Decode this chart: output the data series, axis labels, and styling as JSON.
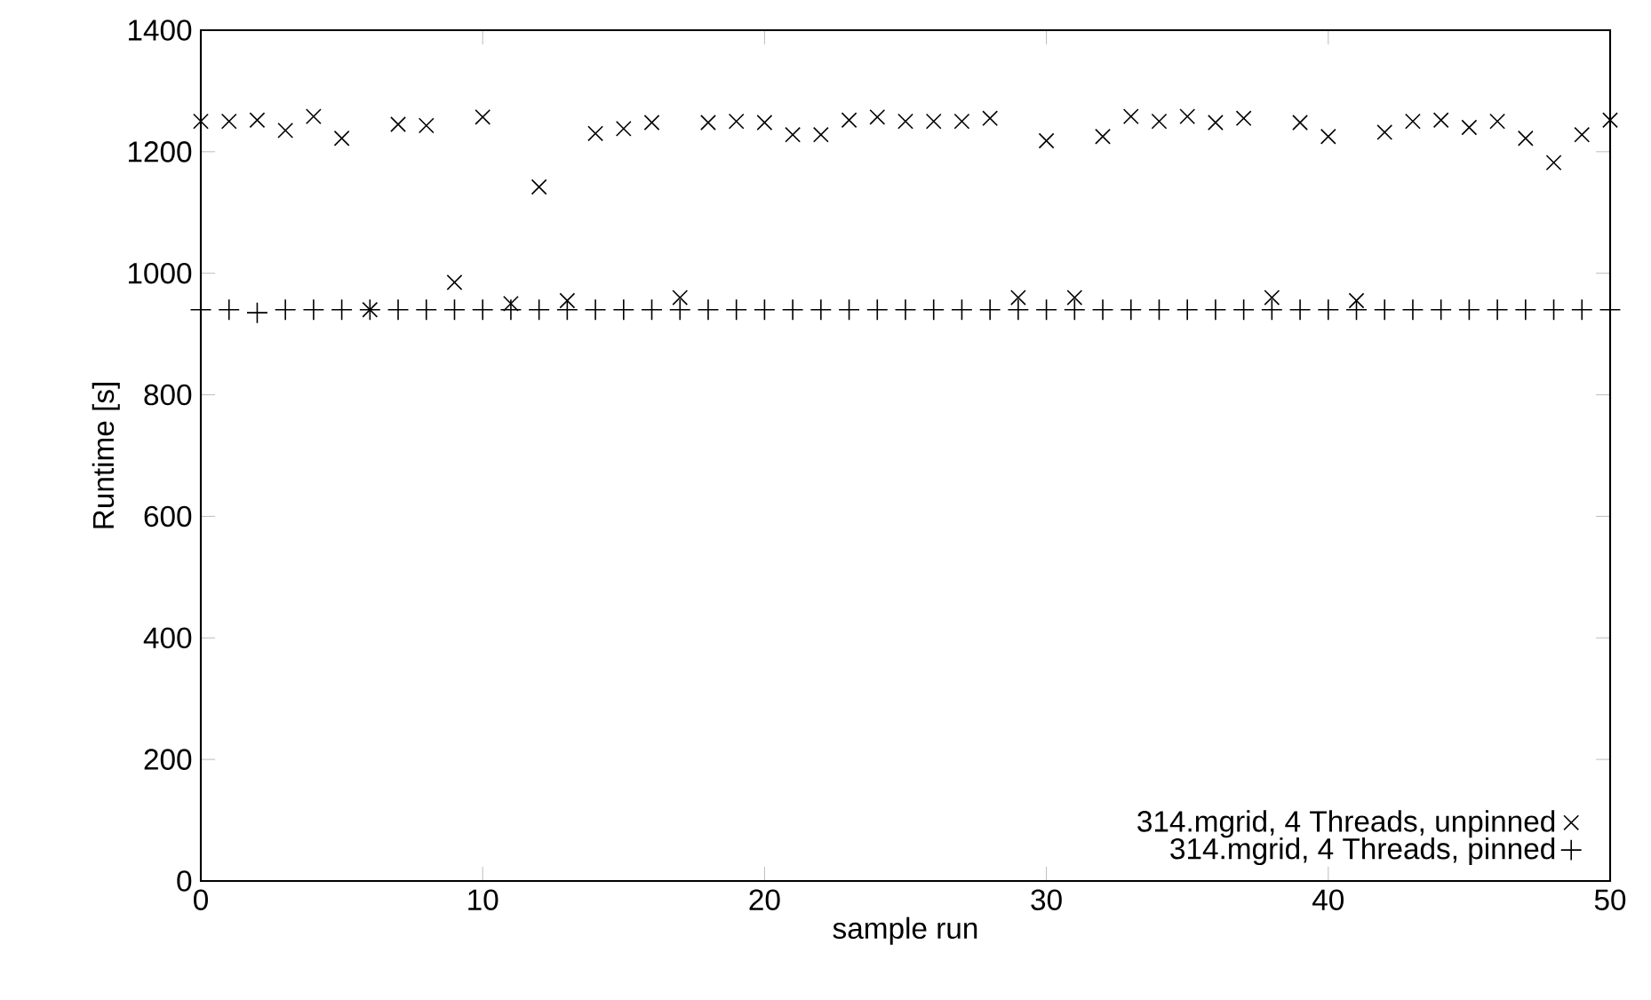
{
  "chart_data": {
    "type": "scatter",
    "xlabel": "sample run",
    "ylabel": "Runtime [s]",
    "x": [
      0,
      1,
      2,
      3,
      4,
      5,
      6,
      7,
      8,
      9,
      10,
      11,
      12,
      13,
      14,
      15,
      16,
      17,
      18,
      19,
      20,
      21,
      22,
      23,
      24,
      25,
      26,
      27,
      28,
      29,
      30,
      31,
      32,
      33,
      34,
      35,
      36,
      37,
      38,
      39,
      40,
      41,
      42,
      43,
      44,
      45,
      46,
      47,
      48,
      49,
      50
    ],
    "series": [
      {
        "name": "314.mgrid, 4 Threads, unpinned",
        "color": "#000000",
        "marker": "cross",
        "values": [
          1250,
          1250,
          1252,
          1235,
          1258,
          1222,
          940,
          1245,
          1243,
          985,
          1257,
          950,
          1142,
          955,
          1230,
          1238,
          1248,
          960,
          1248,
          1250,
          1248,
          1228,
          1228,
          1252,
          1257,
          1250,
          1250,
          1250,
          1255,
          960,
          1218,
          960,
          1225,
          1258,
          1250,
          1258,
          1248,
          1255,
          960,
          1248,
          1225,
          955,
          1232,
          1250,
          1252,
          1240,
          1250,
          1222,
          1182,
          1228,
          1252
        ]
      },
      {
        "name": "314.mgrid, 4 Threads, pinned",
        "color": "#000000",
        "marker": "plus",
        "values": [
          940,
          940,
          935,
          940,
          940,
          940,
          940,
          940,
          940,
          940,
          940,
          940,
          940,
          940,
          940,
          940,
          940,
          940,
          940,
          940,
          940,
          940,
          940,
          940,
          940,
          940,
          940,
          940,
          940,
          940,
          940,
          940,
          940,
          940,
          940,
          940,
          940,
          940,
          940,
          940,
          940,
          940,
          940,
          940,
          940,
          940,
          940,
          940,
          940,
          940,
          940
        ]
      }
    ],
    "xlim": [
      0,
      50
    ],
    "ylim": [
      0,
      1400
    ],
    "xticks": [
      0,
      10,
      20,
      30,
      40,
      50
    ],
    "yticks": [
      0,
      200,
      400,
      600,
      800,
      1000,
      1200,
      1400
    ],
    "grid": false,
    "legend": "bottom right"
  }
}
